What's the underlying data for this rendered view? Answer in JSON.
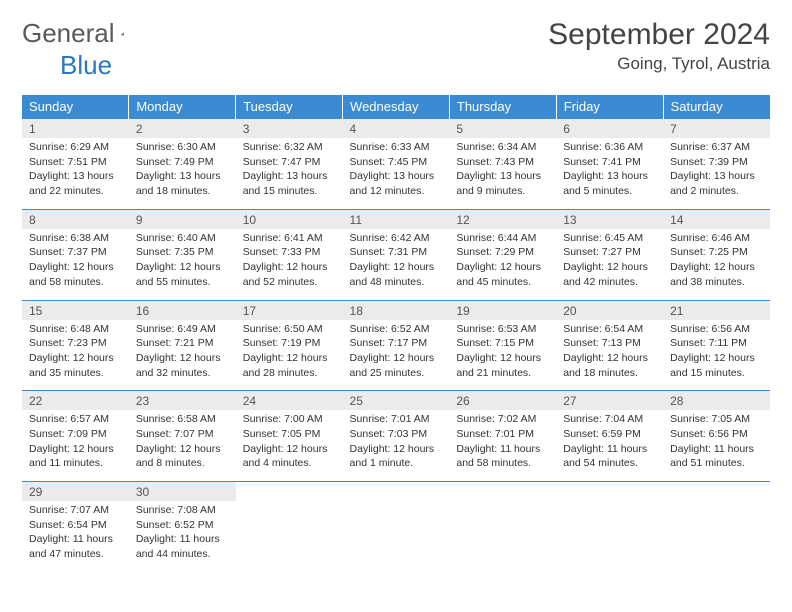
{
  "logo": {
    "word1": "General",
    "word2": "Blue"
  },
  "title": "September 2024",
  "location": "Going, Tyrol, Austria",
  "headers": [
    "Sunday",
    "Monday",
    "Tuesday",
    "Wednesday",
    "Thursday",
    "Friday",
    "Saturday"
  ],
  "colors": {
    "header_bg": "#3b8bd4",
    "header_text": "#ffffff",
    "daynum_bg": "#ebebeb",
    "border": "#3b8bd4",
    "logo_gray": "#5a5a5a",
    "logo_blue": "#2b77c0",
    "body_text": "#333333"
  },
  "typography": {
    "title_fontsize": 30,
    "location_fontsize": 17,
    "header_fontsize": 13,
    "daynum_fontsize": 12,
    "cell_fontsize": 10.5
  },
  "weeks": [
    [
      {
        "n": "1",
        "sunrise": "Sunrise: 6:29 AM",
        "sunset": "Sunset: 7:51 PM",
        "daylight": "Daylight: 13 hours and 22 minutes."
      },
      {
        "n": "2",
        "sunrise": "Sunrise: 6:30 AM",
        "sunset": "Sunset: 7:49 PM",
        "daylight": "Daylight: 13 hours and 18 minutes."
      },
      {
        "n": "3",
        "sunrise": "Sunrise: 6:32 AM",
        "sunset": "Sunset: 7:47 PM",
        "daylight": "Daylight: 13 hours and 15 minutes."
      },
      {
        "n": "4",
        "sunrise": "Sunrise: 6:33 AM",
        "sunset": "Sunset: 7:45 PM",
        "daylight": "Daylight: 13 hours and 12 minutes."
      },
      {
        "n": "5",
        "sunrise": "Sunrise: 6:34 AM",
        "sunset": "Sunset: 7:43 PM",
        "daylight": "Daylight: 13 hours and 9 minutes."
      },
      {
        "n": "6",
        "sunrise": "Sunrise: 6:36 AM",
        "sunset": "Sunset: 7:41 PM",
        "daylight": "Daylight: 13 hours and 5 minutes."
      },
      {
        "n": "7",
        "sunrise": "Sunrise: 6:37 AM",
        "sunset": "Sunset: 7:39 PM",
        "daylight": "Daylight: 13 hours and 2 minutes."
      }
    ],
    [
      {
        "n": "8",
        "sunrise": "Sunrise: 6:38 AM",
        "sunset": "Sunset: 7:37 PM",
        "daylight": "Daylight: 12 hours and 58 minutes."
      },
      {
        "n": "9",
        "sunrise": "Sunrise: 6:40 AM",
        "sunset": "Sunset: 7:35 PM",
        "daylight": "Daylight: 12 hours and 55 minutes."
      },
      {
        "n": "10",
        "sunrise": "Sunrise: 6:41 AM",
        "sunset": "Sunset: 7:33 PM",
        "daylight": "Daylight: 12 hours and 52 minutes."
      },
      {
        "n": "11",
        "sunrise": "Sunrise: 6:42 AM",
        "sunset": "Sunset: 7:31 PM",
        "daylight": "Daylight: 12 hours and 48 minutes."
      },
      {
        "n": "12",
        "sunrise": "Sunrise: 6:44 AM",
        "sunset": "Sunset: 7:29 PM",
        "daylight": "Daylight: 12 hours and 45 minutes."
      },
      {
        "n": "13",
        "sunrise": "Sunrise: 6:45 AM",
        "sunset": "Sunset: 7:27 PM",
        "daylight": "Daylight: 12 hours and 42 minutes."
      },
      {
        "n": "14",
        "sunrise": "Sunrise: 6:46 AM",
        "sunset": "Sunset: 7:25 PM",
        "daylight": "Daylight: 12 hours and 38 minutes."
      }
    ],
    [
      {
        "n": "15",
        "sunrise": "Sunrise: 6:48 AM",
        "sunset": "Sunset: 7:23 PM",
        "daylight": "Daylight: 12 hours and 35 minutes."
      },
      {
        "n": "16",
        "sunrise": "Sunrise: 6:49 AM",
        "sunset": "Sunset: 7:21 PM",
        "daylight": "Daylight: 12 hours and 32 minutes."
      },
      {
        "n": "17",
        "sunrise": "Sunrise: 6:50 AM",
        "sunset": "Sunset: 7:19 PM",
        "daylight": "Daylight: 12 hours and 28 minutes."
      },
      {
        "n": "18",
        "sunrise": "Sunrise: 6:52 AM",
        "sunset": "Sunset: 7:17 PM",
        "daylight": "Daylight: 12 hours and 25 minutes."
      },
      {
        "n": "19",
        "sunrise": "Sunrise: 6:53 AM",
        "sunset": "Sunset: 7:15 PM",
        "daylight": "Daylight: 12 hours and 21 minutes."
      },
      {
        "n": "20",
        "sunrise": "Sunrise: 6:54 AM",
        "sunset": "Sunset: 7:13 PM",
        "daylight": "Daylight: 12 hours and 18 minutes."
      },
      {
        "n": "21",
        "sunrise": "Sunrise: 6:56 AM",
        "sunset": "Sunset: 7:11 PM",
        "daylight": "Daylight: 12 hours and 15 minutes."
      }
    ],
    [
      {
        "n": "22",
        "sunrise": "Sunrise: 6:57 AM",
        "sunset": "Sunset: 7:09 PM",
        "daylight": "Daylight: 12 hours and 11 minutes."
      },
      {
        "n": "23",
        "sunrise": "Sunrise: 6:58 AM",
        "sunset": "Sunset: 7:07 PM",
        "daylight": "Daylight: 12 hours and 8 minutes."
      },
      {
        "n": "24",
        "sunrise": "Sunrise: 7:00 AM",
        "sunset": "Sunset: 7:05 PM",
        "daylight": "Daylight: 12 hours and 4 minutes."
      },
      {
        "n": "25",
        "sunrise": "Sunrise: 7:01 AM",
        "sunset": "Sunset: 7:03 PM",
        "daylight": "Daylight: 12 hours and 1 minute."
      },
      {
        "n": "26",
        "sunrise": "Sunrise: 7:02 AM",
        "sunset": "Sunset: 7:01 PM",
        "daylight": "Daylight: 11 hours and 58 minutes."
      },
      {
        "n": "27",
        "sunrise": "Sunrise: 7:04 AM",
        "sunset": "Sunset: 6:59 PM",
        "daylight": "Daylight: 11 hours and 54 minutes."
      },
      {
        "n": "28",
        "sunrise": "Sunrise: 7:05 AM",
        "sunset": "Sunset: 6:56 PM",
        "daylight": "Daylight: 11 hours and 51 minutes."
      }
    ],
    [
      {
        "n": "29",
        "sunrise": "Sunrise: 7:07 AM",
        "sunset": "Sunset: 6:54 PM",
        "daylight": "Daylight: 11 hours and 47 minutes."
      },
      {
        "n": "30",
        "sunrise": "Sunrise: 7:08 AM",
        "sunset": "Sunset: 6:52 PM",
        "daylight": "Daylight: 11 hours and 44 minutes."
      },
      null,
      null,
      null,
      null,
      null
    ]
  ]
}
